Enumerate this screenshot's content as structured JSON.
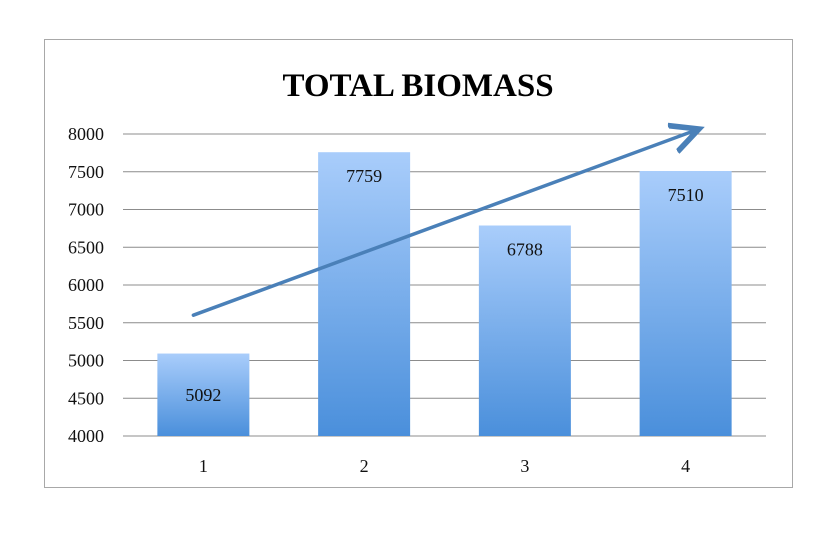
{
  "chart_data": {
    "type": "bar",
    "title": "TOTAL BIOMASS",
    "xlabel": "",
    "ylabel": "",
    "categories": [
      "1",
      "2",
      "3",
      "4"
    ],
    "values": [
      5092,
      7759,
      6788,
      7510
    ],
    "data_labels": [
      "5092",
      "7759",
      "6788",
      "7510"
    ],
    "ylim": [
      4000,
      8000
    ],
    "y_ticks": [
      4000,
      4500,
      5000,
      5500,
      6000,
      6500,
      7000,
      7500,
      8000
    ],
    "y_tick_labels": [
      "4000",
      "4500",
      "5000",
      "5500",
      "6000",
      "6500",
      "7000",
      "7500",
      "8000"
    ],
    "grid": true,
    "legend": "none",
    "annotation": {
      "type": "trend-arrow",
      "from": {
        "x": "1",
        "y": 5600
      },
      "to": {
        "x": "4",
        "y": 8050
      }
    },
    "colors": {
      "bar_top": "#a9cdfb",
      "bar_bottom": "#4a8fdb",
      "arrow": "#4a80b8",
      "grid": "#8c8c8c"
    }
  }
}
